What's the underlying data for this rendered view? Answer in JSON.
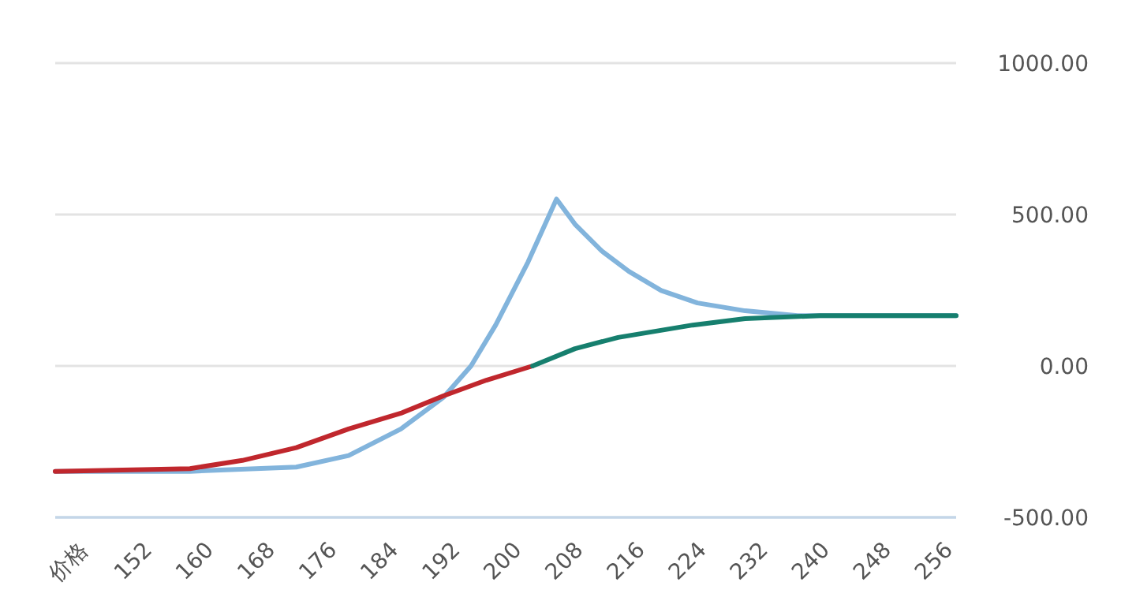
{
  "chart_data": {
    "type": "line",
    "xlabel": "价格",
    "xlim": [
      140,
      257
    ],
    "xticks": [
      152,
      160,
      168,
      176,
      184,
      192,
      200,
      208,
      216,
      224,
      232,
      240,
      248,
      256
    ],
    "ylim": [
      -500,
      1000
    ],
    "yticks": [
      {
        "value": -500,
        "label": "-500.00"
      },
      {
        "value": 0,
        "label": "0.00"
      },
      {
        "value": 500,
        "label": "500.00"
      },
      {
        "value": 1000,
        "label": "1000.00"
      }
    ],
    "grid": "y",
    "marker": "none",
    "line_style": "solid",
    "series": [
      {
        "color": "#82b4dc",
        "x": [
          140,
          157.5,
          171.3,
          178.1,
          184.9,
          190.4,
          194,
          197.2,
          201.4,
          205.1,
          207.5,
          211,
          214.5,
          218.7,
          223.4,
          229.6,
          236.4,
          257
        ],
        "values": [
          -348,
          -348,
          -334,
          -296,
          -208,
          -104,
          0,
          135,
          343,
          551,
          468,
          379,
          312,
          249,
          208,
          182,
          166,
          166
        ]
      },
      {
        "color": "#c0272d",
        "x": [
          140,
          157.5,
          164.3,
          171.3,
          178.1,
          184.9,
          190.4,
          196,
          202
        ],
        "values": [
          -348,
          -339,
          -312,
          -270,
          -208,
          -156,
          -99,
          -47,
          0
        ]
      },
      {
        "color": "#167f6e",
        "x": [
          202,
          207.5,
          213.1,
          222.8,
          229.6,
          239.3,
          257
        ],
        "values": [
          0,
          57,
          94,
          135,
          156,
          166,
          166
        ]
      }
    ]
  }
}
